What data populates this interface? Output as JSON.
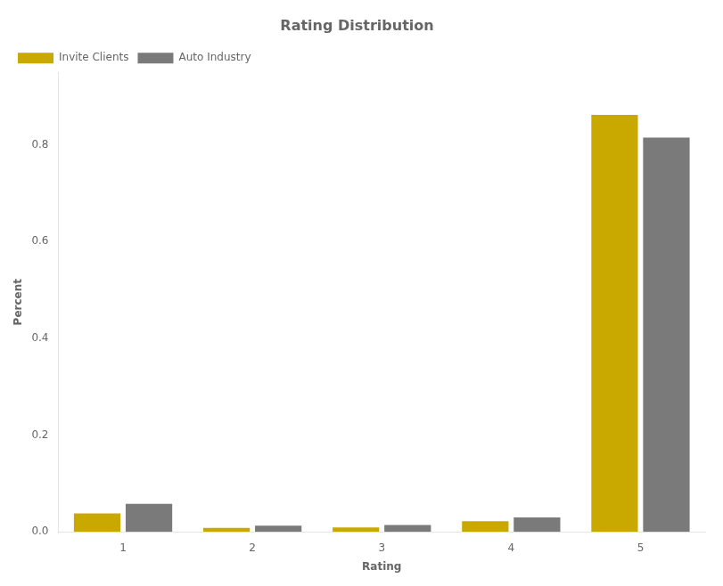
{
  "chart_data": {
    "type": "bar",
    "title": "Rating Distribution",
    "xlabel": "Rating",
    "ylabel": "Percent",
    "categories": [
      "1",
      "2",
      "3",
      "4",
      "5"
    ],
    "series": [
      {
        "name": "Invite Clients",
        "color": "#C9A800",
        "values": [
          0.038,
          0.008,
          0.009,
          0.022,
          0.862
        ]
      },
      {
        "name": "Auto Industry",
        "color": "#7a7a7a",
        "values": [
          0.058,
          0.013,
          0.014,
          0.03,
          0.815
        ]
      }
    ],
    "ylim": [
      0,
      0.95
    ],
    "yticks": [
      {
        "value": 0,
        "label": "0.0"
      },
      0.2,
      0.4,
      0.6,
      0.8
    ],
    "grid": false,
    "legend": "upper left"
  }
}
